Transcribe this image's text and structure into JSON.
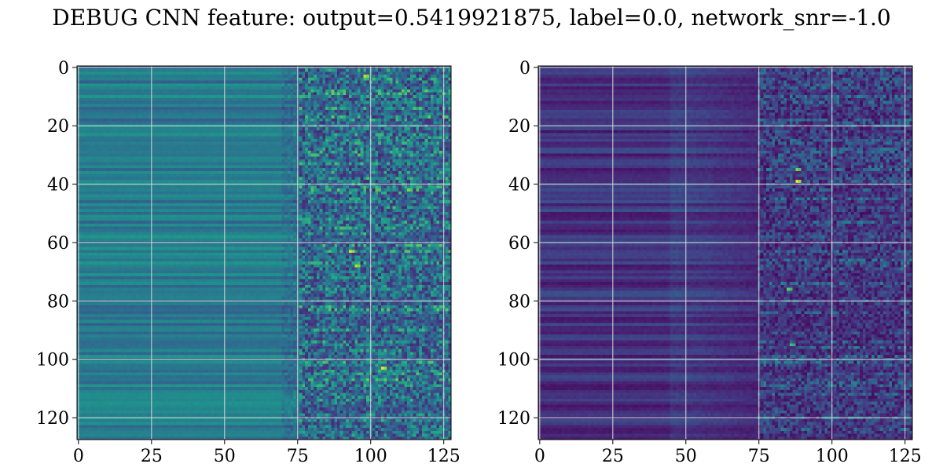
{
  "figure": {
    "title": "DEBUG CNN feature: output=0.5419921875, label=0.0, network_snr=-1.0"
  },
  "chart_data": [
    {
      "type": "heatmap",
      "colormap": "viridis",
      "rows": 128,
      "cols": 128,
      "xlim": [
        0,
        127
      ],
      "ylim": [
        127,
        0
      ],
      "xticks": [
        0,
        25,
        50,
        75,
        100,
        125
      ],
      "yticks": [
        0,
        20,
        40,
        60,
        80,
        100,
        120
      ],
      "grid": true,
      "hotspots": [
        {
          "x": 93,
          "y": 63,
          "value": 0.95
        },
        {
          "x": 95,
          "y": 68,
          "value": 0.9
        },
        {
          "x": 104,
          "y": 103,
          "value": 0.95
        },
        {
          "x": 98,
          "y": 3,
          "value": 0.9
        },
        {
          "x": 113,
          "y": 42,
          "value": 0.8
        }
      ]
    },
    {
      "type": "heatmap",
      "colormap": "viridis",
      "rows": 128,
      "cols": 128,
      "xlim": [
        0,
        127
      ],
      "ylim": [
        127,
        0
      ],
      "xticks": [
        0,
        25,
        50,
        75,
        100,
        125
      ],
      "yticks": [
        0,
        20,
        40,
        60,
        80,
        100,
        120
      ],
      "grid": true,
      "hotspots": [
        {
          "x": 88,
          "y": 39,
          "value": 0.95
        },
        {
          "x": 88,
          "y": 35,
          "value": 0.8
        },
        {
          "x": 85,
          "y": 76,
          "value": 0.75
        },
        {
          "x": 86,
          "y": 95,
          "value": 0.7
        }
      ]
    }
  ]
}
